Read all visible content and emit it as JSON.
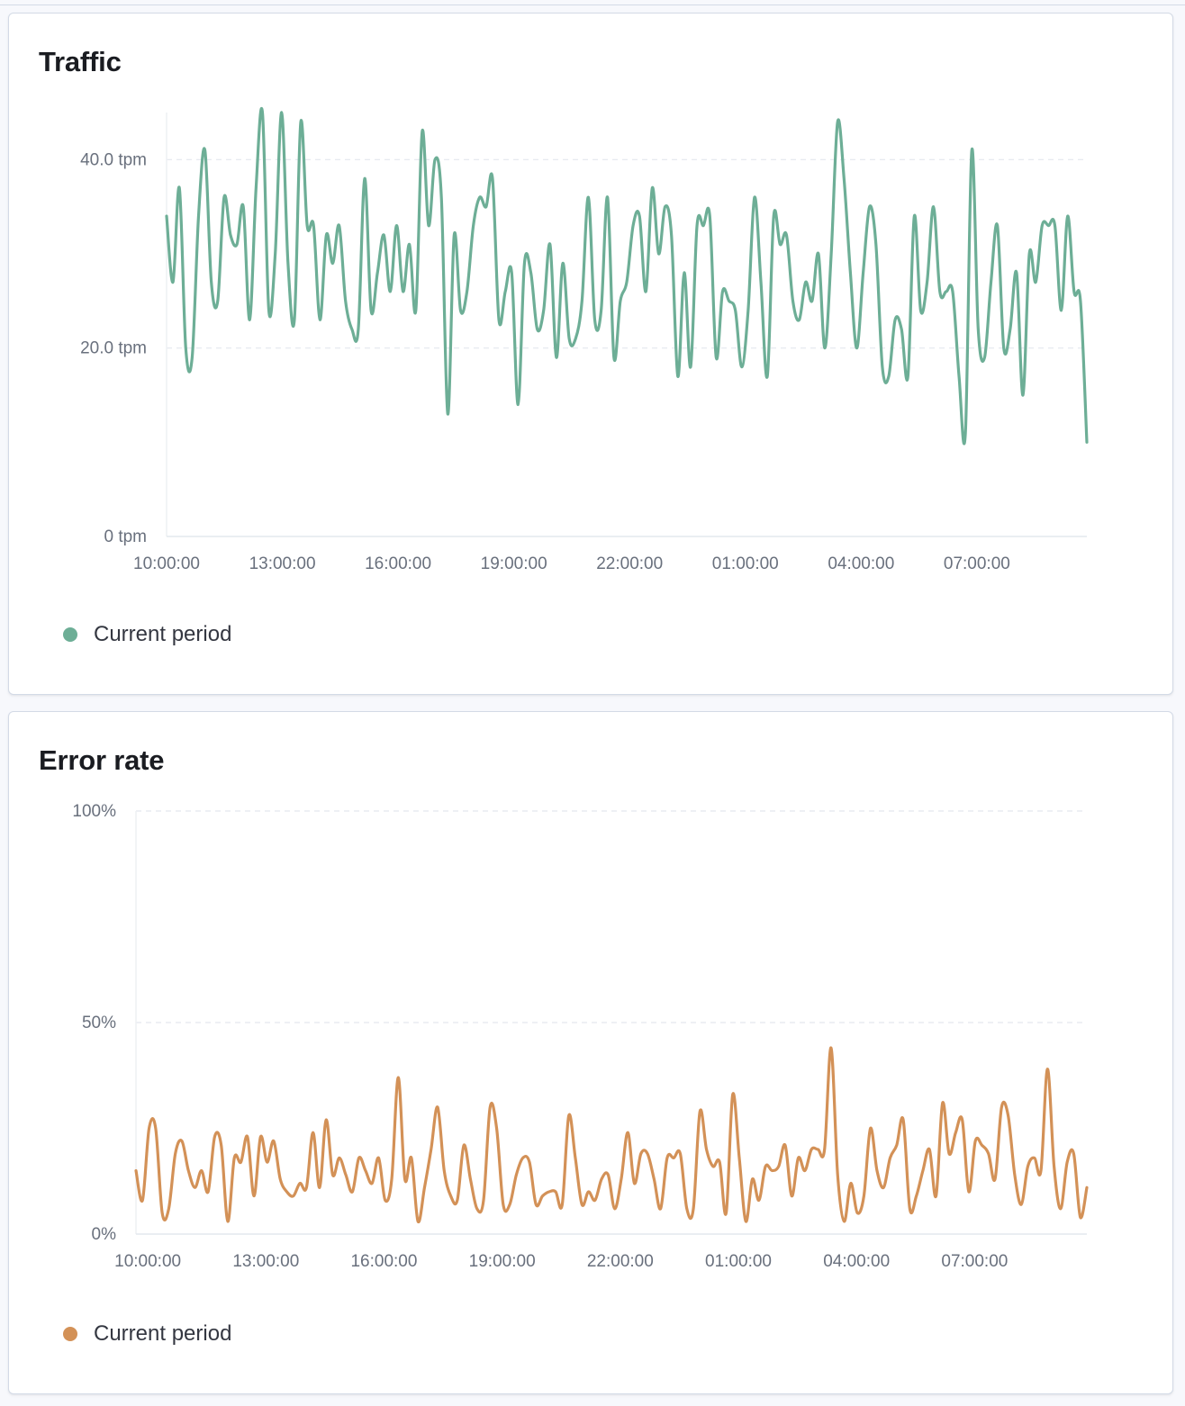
{
  "traffic": {
    "title": "Traffic",
    "legend_label": "Current period",
    "color": "#6dae96",
    "chart_data": {
      "type": "line",
      "title": "Traffic",
      "ylim": [
        0,
        45
      ],
      "y_ticks": [
        {
          "value": 0,
          "label": "0 tpm"
        },
        {
          "value": 20,
          "label": "20.0 tpm"
        },
        {
          "value": 40,
          "label": "40.0 tpm"
        }
      ],
      "x_ticks": [
        {
          "value": 0,
          "label": "10:00:00"
        },
        {
          "value": 3,
          "label": "13:00:00"
        },
        {
          "value": 6,
          "label": "16:00:00"
        },
        {
          "value": 9,
          "label": "19:00:00"
        },
        {
          "value": 12,
          "label": "22:00:00"
        },
        {
          "value": 15,
          "label": "01:00:00"
        },
        {
          "value": 18,
          "label": "04:00:00"
        },
        {
          "value": 21,
          "label": "07:00:00"
        }
      ],
      "xlim": [
        0,
        23.85
      ],
      "grid": "horizontal dashed",
      "series": [
        {
          "name": "Current period",
          "values": [
            34,
            27,
            37,
            20,
            19,
            34,
            41,
            27,
            25,
            36,
            32,
            31,
            35,
            23,
            37,
            45,
            24,
            30,
            45,
            29,
            23,
            44,
            33,
            33,
            23,
            32,
            29,
            33,
            25,
            22,
            22,
            38,
            24,
            28,
            32,
            26,
            33,
            26,
            31,
            24,
            43,
            33,
            40,
            36,
            13,
            32,
            24,
            26,
            33,
            36,
            35,
            38,
            23,
            26,
            28,
            14,
            29,
            28,
            22,
            24,
            31,
            19,
            29,
            21,
            21,
            25,
            36,
            23,
            24,
            36,
            19,
            25,
            27,
            33,
            34,
            26,
            37,
            30,
            35,
            32,
            17,
            28,
            18,
            33,
            33,
            34,
            19,
            26,
            25,
            24,
            18,
            24,
            36,
            27,
            17,
            34,
            31,
            32,
            25,
            23,
            27,
            25,
            30,
            20,
            30,
            44,
            38,
            28,
            20,
            28,
            35,
            31,
            18,
            17,
            23,
            22,
            17,
            34,
            24,
            27,
            35,
            26,
            26,
            26,
            17,
            11,
            41,
            22,
            19,
            27,
            33,
            20,
            22,
            28,
            15,
            30,
            27,
            33,
            33,
            33,
            24,
            34,
            26,
            25,
            10
          ]
        }
      ]
    }
  },
  "error_rate": {
    "title": "Error rate",
    "legend_label": "Current period",
    "color": "#d39157",
    "chart_data": {
      "type": "line",
      "title": "Error rate",
      "ylim": [
        0,
        100
      ],
      "y_ticks": [
        {
          "value": 0,
          "label": "0%"
        },
        {
          "value": 50,
          "label": "50%"
        },
        {
          "value": 100,
          "label": "100%"
        }
      ],
      "x_ticks": [
        {
          "value": 0,
          "label": "10:00:00"
        },
        {
          "value": 3,
          "label": "13:00:00"
        },
        {
          "value": 6,
          "label": "16:00:00"
        },
        {
          "value": 9,
          "label": "19:00:00"
        },
        {
          "value": 12,
          "label": "22:00:00"
        },
        {
          "value": 15,
          "label": "01:00:00"
        },
        {
          "value": 18,
          "label": "04:00:00"
        },
        {
          "value": 21,
          "label": "07:00:00"
        }
      ],
      "xlim": [
        -0.3,
        23.85
      ],
      "grid": "horizontal dashed",
      "series": [
        {
          "name": "Current period",
          "values": [
            15,
            8,
            25,
            25,
            5,
            6,
            19,
            22,
            15,
            11,
            15,
            10,
            23,
            21,
            3,
            18,
            17,
            23,
            9,
            23,
            17,
            22,
            13,
            10,
            9,
            12,
            11,
            24,
            11,
            27,
            14,
            18,
            14,
            10,
            18,
            15,
            12,
            18,
            8,
            13,
            37,
            13,
            18,
            3,
            11,
            20,
            30,
            15,
            9,
            8,
            21,
            13,
            6,
            8,
            30,
            25,
            7,
            7,
            14,
            18,
            17,
            7,
            9,
            10,
            10,
            7,
            28,
            18,
            7,
            10,
            8,
            13,
            14,
            6,
            13,
            24,
            12,
            19,
            19,
            13,
            6,
            18,
            18,
            19,
            6,
            6,
            29,
            20,
            16,
            17,
            5,
            33,
            18,
            3,
            13,
            8,
            16,
            15,
            16,
            21,
            9,
            18,
            15,
            20,
            20,
            20,
            44,
            14,
            3,
            12,
            5,
            9,
            25,
            15,
            11,
            18,
            21,
            27,
            6,
            9,
            15,
            20,
            9,
            31,
            19,
            24,
            27,
            10,
            22,
            21,
            19,
            13,
            30,
            28,
            14,
            7,
            16,
            18,
            15,
            39,
            16,
            6,
            17,
            19,
            4,
            11
          ]
        }
      ]
    }
  }
}
